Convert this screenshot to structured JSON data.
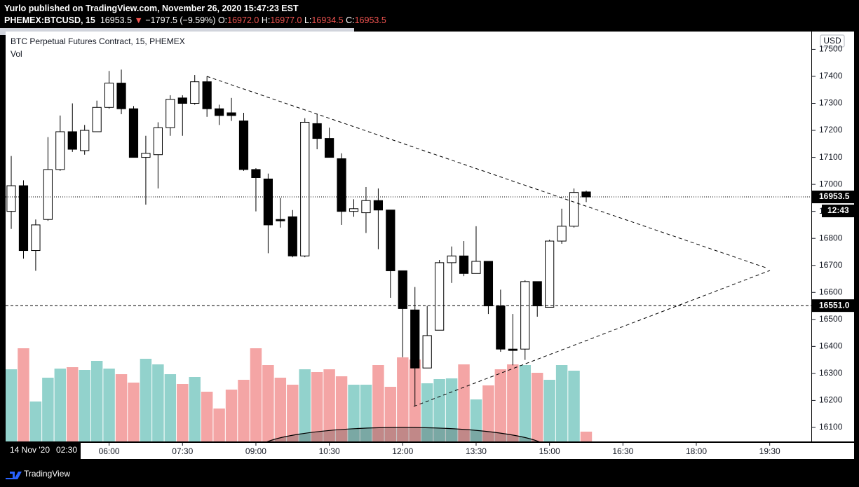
{
  "header": {
    "publisher": "Yurlo published on TradingView.com, November 26, 2020 15:47:23 EST",
    "symbol": "PHEMEX:BTCUSD, 15",
    "last": "16953.5",
    "change": "−1797.5 (−9.59%)",
    "ohlc": [
      {
        "label": "O:",
        "value": "16972.0"
      },
      {
        "label": "H:",
        "value": "16977.0"
      },
      {
        "label": "L:",
        "value": "16934.5"
      },
      {
        "label": "C:",
        "value": "16953.5"
      }
    ]
  },
  "chart_data": {
    "type": "candlestick",
    "title": "BTC Perpetual Futures Contract, 15, PHEMEX",
    "volume_label": "Vol",
    "currency": "USD",
    "open": [
      16900,
      16995,
      16755,
      16870,
      17055,
      17195,
      17125,
      17195,
      17285,
      17375,
      17280,
      17100,
      17110,
      17210,
      17320,
      17300,
      17380,
      17280,
      17265,
      17235,
      17055,
      17020,
      16870,
      16880,
      16735,
      17225,
      17170,
      17095,
      16900,
      16895,
      16940,
      16905,
      16680,
      16535,
      16320,
      16460,
      16710,
      16735,
      16670,
      16715,
      16550,
      16390,
      16390,
      16640,
      16545,
      16790,
      16845,
      16972
    ],
    "high": [
      17105,
      17015,
      16870,
      17175,
      17255,
      17300,
      17220,
      17310,
      17420,
      17425,
      17290,
      17180,
      17230,
      17330,
      17330,
      17405,
      17400,
      17295,
      17320,
      17265,
      17060,
      17040,
      16950,
      16905,
      17245,
      17260,
      17210,
      17115,
      16945,
      16990,
      16985,
      16905,
      16680,
      16620,
      16550,
      16720,
      16770,
      16790,
      16845,
      16715,
      16610,
      16520,
      16645,
      16640,
      16795,
      16910,
      16985,
      16977
    ],
    "low": [
      16835,
      16725,
      16680,
      16865,
      17050,
      17120,
      17110,
      17195,
      17280,
      17260,
      17100,
      16925,
      16985,
      17180,
      17180,
      17295,
      17250,
      17220,
      17235,
      17050,
      16900,
      16745,
      16840,
      16730,
      16730,
      17130,
      17100,
      16850,
      16880,
      16820,
      16760,
      16580,
      16360,
      16180,
      16320,
      16460,
      16635,
      16660,
      16670,
      16520,
      16380,
      16330,
      16350,
      16510,
      16545,
      16780,
      16840,
      16934.5
    ],
    "close": [
      16995,
      16755,
      16850,
      17055,
      17195,
      17130,
      17200,
      17285,
      17375,
      17280,
      17100,
      17115,
      17210,
      17315,
      17300,
      17380,
      17280,
      17255,
      17255,
      17055,
      17025,
      16850,
      16865,
      16735,
      17230,
      17170,
      17100,
      16900,
      16910,
      16940,
      16905,
      16680,
      16540,
      16320,
      16440,
      16710,
      16735,
      16670,
      16715,
      16550,
      16390,
      16385,
      16640,
      16550,
      16790,
      16845,
      16970,
      16953.5
    ],
    "volume": [
      103,
      133,
      57,
      91,
      104,
      106,
      102,
      115,
      104,
      96,
      84,
      118,
      110,
      96,
      82,
      92,
      71,
      47,
      74,
      88,
      133,
      109,
      91,
      81,
      103,
      99,
      103,
      93,
      81,
      81,
      109,
      78,
      120,
      117,
      83,
      89,
      90,
      110,
      60,
      80,
      103,
      110,
      109,
      98,
      88,
      109,
      101,
      14
    ],
    "up_color": "#ffffff",
    "down_color": "#000000",
    "volume_up_color": "#92d2cc",
    "volume_down_color": "#f4a5a5",
    "xlim": [
      -0.46,
      65.4
    ],
    "xticks": [
      {
        "value": 8,
        "label": "06:00"
      },
      {
        "value": 14,
        "label": "07:30"
      },
      {
        "value": 20,
        "label": "09:00"
      },
      {
        "value": 26,
        "label": "10:30"
      },
      {
        "value": 32,
        "label": "12:00"
      },
      {
        "value": 38,
        "label": "13:30"
      },
      {
        "value": 44,
        "label": "15:00"
      },
      {
        "value": 50,
        "label": "16:30"
      },
      {
        "value": 56,
        "label": "18:00"
      },
      {
        "value": 62,
        "label": "19:30"
      }
    ],
    "ylim": [
      16048,
      17566
    ],
    "yticks": [
      16100,
      16200,
      16300,
      16400,
      16500,
      16600,
      16700,
      16800,
      16900,
      17000,
      17100,
      17200,
      17300,
      17400,
      17500
    ],
    "volume_ylim": [
      0,
      585
    ],
    "last_price": {
      "value": 16953.5,
      "label": "16953.5"
    },
    "countdown": "12:43",
    "level": {
      "value": 16551.0,
      "label": "16551.0"
    },
    "start_date": "14 Nov '20",
    "start_time": "02:30"
  },
  "footer": {
    "brand": "TradingView"
  }
}
